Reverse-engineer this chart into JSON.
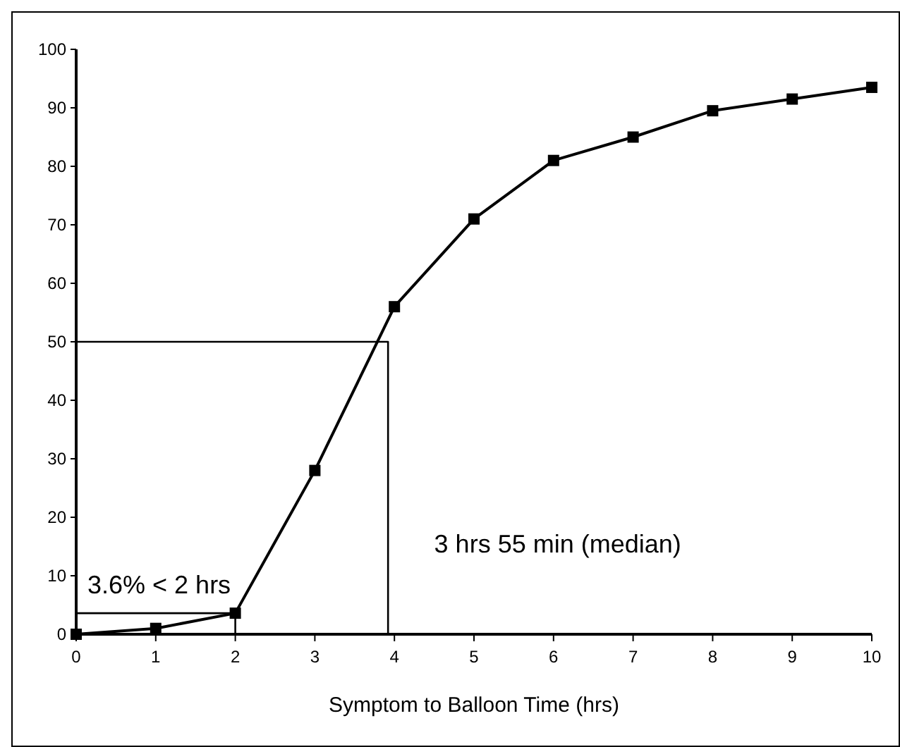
{
  "chart_data": {
    "type": "line",
    "xlabel": "Symptom to Balloon Time (hrs)",
    "x": [
      0,
      1,
      2,
      3,
      4,
      5,
      6,
      7,
      8,
      9,
      10
    ],
    "xlim": [
      0,
      10
    ],
    "xticks": [
      0,
      1,
      2,
      3,
      4,
      5,
      6,
      7,
      8,
      9,
      10
    ],
    "ylim": [
      0,
      100
    ],
    "yticks": [
      0,
      10,
      20,
      30,
      40,
      50,
      60,
      70,
      80,
      90,
      100
    ],
    "grid": false,
    "marker": "square",
    "line_style": "solid",
    "series": [
      {
        "color": "#000000",
        "values": [
          0,
          1,
          3.6,
          28,
          56,
          71,
          81,
          85,
          89.5,
          91.5,
          93.5
        ]
      },
      {
        "color": "#000000",
        "marker": "none",
        "x": [
          0,
          2,
          2
        ],
        "values": [
          3.6,
          3.6,
          0
        ]
      },
      {
        "color": "#000000",
        "marker": "none",
        "x": [
          0,
          3.92,
          3.92
        ],
        "values": [
          50,
          50,
          0
        ]
      }
    ],
    "annotations": [
      "3.6% < 2 hrs",
      "3 hrs 55 min (median)"
    ]
  }
}
